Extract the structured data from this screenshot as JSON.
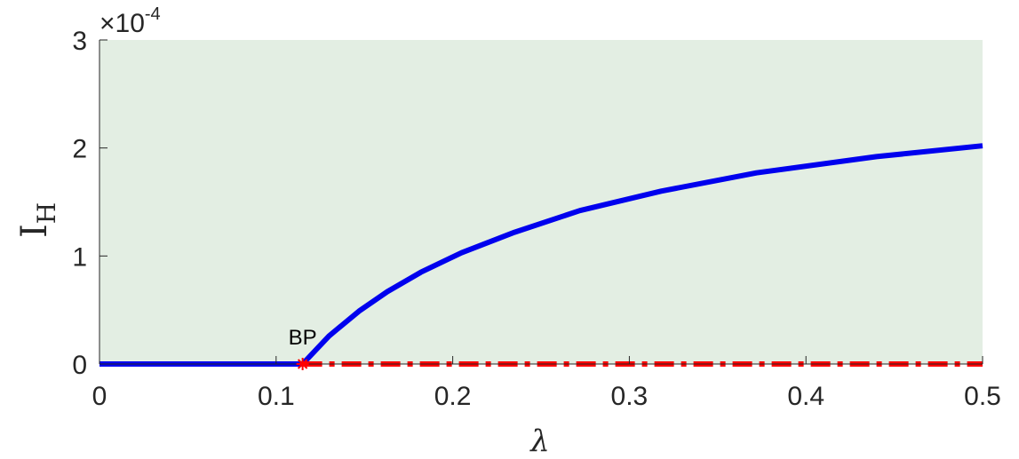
{
  "chart_data": {
    "type": "line",
    "xlabel": "λ",
    "ylabel": "I",
    "ylabel_sub": "H",
    "xlim": [
      0,
      0.5
    ],
    "ylim": [
      0,
      3
    ],
    "y_exponent": {
      "times": "×10",
      "power": "-4"
    },
    "x_ticks": [
      0,
      0.1,
      0.2,
      0.3,
      0.4,
      0.5
    ],
    "x_tick_labels": [
      "0",
      "0.1",
      "0.2",
      "0.3",
      "0.4",
      "0.5"
    ],
    "y_ticks": [
      0,
      1,
      2,
      3
    ],
    "y_tick_labels": [
      "0",
      "1",
      "2",
      "3"
    ],
    "grid": false,
    "background_color": "#e3eee3",
    "series": [
      {
        "style": "solid",
        "color": "#0000ee",
        "x": [
          0,
          0.115
        ],
        "y": [
          0,
          0
        ]
      },
      {
        "style": "solid",
        "color": "#0000ee",
        "x": [
          0.115,
          0.13,
          0.147,
          0.163,
          0.182,
          0.205,
          0.235,
          0.272,
          0.318,
          0.372,
          0.44,
          0.5
        ],
        "y": [
          0,
          0.26,
          0.49,
          0.67,
          0.85,
          1.03,
          1.22,
          1.42,
          1.6,
          1.77,
          1.92,
          2.02
        ]
      },
      {
        "style": "dash-dot",
        "color": "#ff0000",
        "x": [
          0.115,
          0.5
        ],
        "y": [
          0,
          0
        ]
      }
    ],
    "points": [
      {
        "label": "BP",
        "x": 0.115,
        "y": 0,
        "color": "#ff0000",
        "marker": "asterisk"
      }
    ]
  }
}
